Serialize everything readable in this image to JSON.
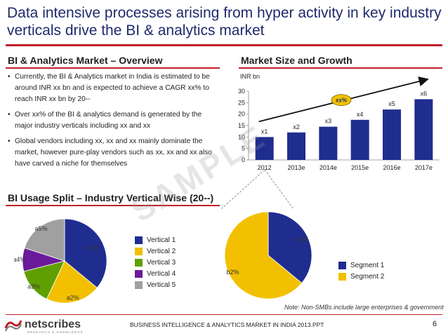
{
  "title": "Data intensive processes arising from hyper activity in key industry verticals drive the BI & analytics market",
  "sections": {
    "overview": "BI & Analytics Market – Overview",
    "market_size": "Market Size and Growth",
    "usage_split": "BI Usage Split – Industry Vertical Wise (20--)"
  },
  "bullets": [
    "Currently, the BI & Analytics market in India is estimated to be around INR xx bn and is expected to achieve a CAGR xx% to reach INR xx bn by 20--",
    "Over xx% of the BI & analytics demand is generated by the major industry verticals including xx and xx",
    "Global vendors including xx, xx and xx mainly dominate the market, however pure-play vendors such as xx, xx and xx also have carved a niche for themselves"
  ],
  "watermark": "SAMPLE",
  "note": "Note: Non-SMBs include large enterprises & government",
  "footer": {
    "logo": "netscribes",
    "logo_tagline": "RESEARCH & KNOWLEDGE",
    "text": "BUSINESS INTELLIGENCE & ANALYTICS MARKET IN INDIA 2013.PPT",
    "page": "6"
  },
  "colors": {
    "title": "#1f2a6b",
    "accent_rule": "#c0202a",
    "bar": "#1f2d8f",
    "vertical_1": "#1f2d8f",
    "vertical_2": "#f2c000",
    "vertical_3": "#5fa000",
    "vertical_4": "#6a1b9a",
    "vertical_5": "#a0a0a0",
    "segment_1": "#1f2d8f",
    "segment_2": "#f2c000",
    "cagr_bubble": "#f2c000"
  },
  "chart_data": [
    {
      "type": "bar",
      "ylabel": "INR bn",
      "categories": [
        "2012",
        "2013e",
        "2014e",
        "2015e",
        "2016e",
        "2017e"
      ],
      "values": [
        10,
        12,
        14.5,
        17.5,
        22,
        26.5
      ],
      "data_labels": [
        "x1",
        "x2",
        "x3",
        "x4",
        "x5",
        "x6"
      ],
      "ylim": [
        0,
        30
      ],
      "yticks": [
        0,
        5,
        10,
        15,
        20,
        25,
        30
      ],
      "grid": false,
      "cagr_label": "xx%"
    },
    {
      "type": "pie",
      "labels": [
        "a1%",
        "a2%",
        "a3%",
        "a4%",
        "a5%"
      ],
      "legend": [
        "Vertical 1",
        "Vertical 2",
        "Vertical 3",
        "Vertical 4",
        "Vertical 5"
      ],
      "values": [
        36,
        21,
        14,
        9,
        20
      ],
      "legend_position": "right"
    },
    {
      "type": "pie",
      "labels": [
        "b1%",
        "b2%"
      ],
      "legend": [
        "Segment 1",
        "Segment 2"
      ],
      "values": [
        36,
        64
      ],
      "legend_position": "right"
    }
  ]
}
